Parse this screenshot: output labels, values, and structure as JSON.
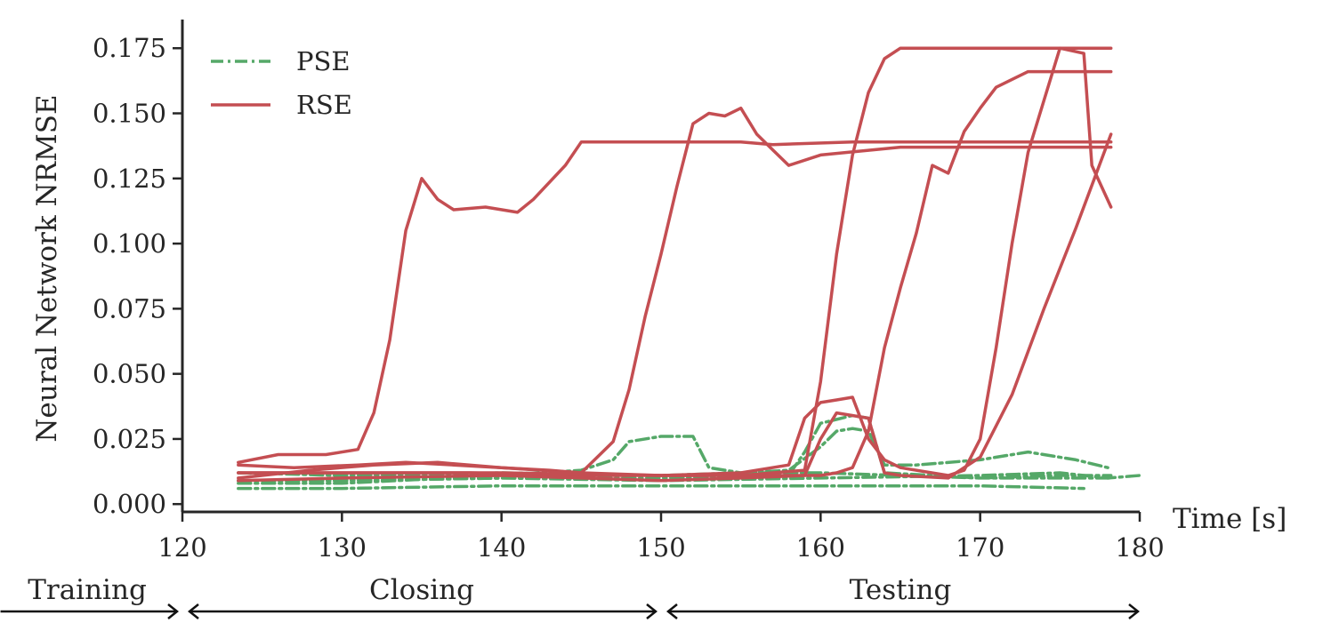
{
  "chart_data": {
    "type": "line",
    "title": "",
    "xlabel": "Time [s]",
    "ylabel": "Neural Network NRMSE",
    "xlim": [
      120,
      180
    ],
    "ylim": [
      -0.003,
      0.186
    ],
    "x_ticks": [
      120,
      130,
      140,
      150,
      160,
      170,
      180
    ],
    "x_tick_labels": [
      "120",
      "130",
      "140",
      "150",
      "160",
      "170",
      "180"
    ],
    "y_ticks": [
      0,
      0.025,
      0.05,
      0.075,
      0.1,
      0.125,
      0.15,
      0.175
    ],
    "y_tick_labels": [
      "0.000",
      "0.025",
      "0.050",
      "0.075",
      "0.100",
      "0.125",
      "0.150",
      "0.175"
    ],
    "grid": false,
    "legend": {
      "position": "top-left",
      "entries": [
        {
          "label": "PSE",
          "color": "#55a868",
          "style": "dash-dot"
        },
        {
          "label": "RSE",
          "color": "#c44e52",
          "style": "solid"
        }
      ]
    },
    "phases": [
      {
        "label": "Training",
        "from": 108.6,
        "to": 120
      },
      {
        "label": "Closing",
        "from": 120,
        "to": 150
      },
      {
        "label": "Testing",
        "from": 150,
        "to": 180
      }
    ],
    "series": [
      {
        "group": "RSE",
        "color": "#c44e52",
        "style": "solid",
        "x": [
          123.5,
          126,
          129,
          131,
          132,
          133,
          134,
          135,
          136,
          137,
          139,
          141,
          142,
          144,
          145,
          148,
          152,
          155,
          157,
          162,
          168,
          175,
          178.2
        ],
        "y": [
          0.016,
          0.019,
          0.019,
          0.021,
          0.035,
          0.063,
          0.105,
          0.125,
          0.117,
          0.113,
          0.114,
          0.112,
          0.117,
          0.13,
          0.139,
          0.139,
          0.139,
          0.139,
          0.138,
          0.139,
          0.139,
          0.139,
          0.139
        ]
      },
      {
        "group": "RSE",
        "color": "#c44e52",
        "style": "solid",
        "x": [
          123.5,
          127,
          131,
          134,
          137,
          140,
          143,
          145,
          147,
          148,
          149,
          150,
          151,
          152,
          153,
          154,
          155,
          156,
          157,
          158,
          160,
          165,
          170,
          175,
          178.2
        ],
        "y": [
          0.015,
          0.014,
          0.015,
          0.016,
          0.015,
          0.014,
          0.013,
          0.012,
          0.024,
          0.044,
          0.072,
          0.096,
          0.122,
          0.146,
          0.15,
          0.149,
          0.152,
          0.142,
          0.136,
          0.13,
          0.134,
          0.137,
          0.137,
          0.137,
          0.137
        ]
      },
      {
        "group": "RSE",
        "color": "#c44e52",
        "style": "solid",
        "x": [
          123.5,
          130,
          138,
          145,
          150,
          155,
          159,
          160,
          161,
          162,
          163,
          164,
          165,
          166,
          167,
          170,
          175,
          178.2
        ],
        "y": [
          0.012,
          0.012,
          0.012,
          0.011,
          0.011,
          0.011,
          0.013,
          0.047,
          0.096,
          0.134,
          0.158,
          0.171,
          0.175,
          0.175,
          0.175,
          0.175,
          0.175,
          0.175
        ]
      },
      {
        "group": "RSE",
        "color": "#c44e52",
        "style": "solid",
        "x": [
          123.5,
          130,
          140,
          150,
          155,
          160,
          161,
          162,
          163,
          164,
          165,
          166,
          167,
          168,
          169,
          170,
          171,
          173,
          175,
          178.2
        ],
        "y": [
          0.012,
          0.012,
          0.012,
          0.011,
          0.011,
          0.011,
          0.012,
          0.014,
          0.028,
          0.06,
          0.083,
          0.104,
          0.13,
          0.127,
          0.143,
          0.152,
          0.16,
          0.166,
          0.166,
          0.166
        ]
      },
      {
        "group": "RSE",
        "color": "#c44e52",
        "style": "solid",
        "x": [
          123.5,
          128,
          132,
          136,
          140,
          145,
          150,
          155,
          158,
          159,
          160,
          161,
          162,
          163,
          164,
          165,
          168,
          169,
          170,
          171,
          172,
          173,
          175,
          176.5,
          177,
          178.2
        ],
        "y": [
          0.01,
          0.013,
          0.015,
          0.016,
          0.014,
          0.012,
          0.011,
          0.012,
          0.015,
          0.033,
          0.039,
          0.04,
          0.041,
          0.025,
          0.017,
          0.014,
          0.011,
          0.013,
          0.025,
          0.06,
          0.1,
          0.135,
          0.175,
          0.173,
          0.13,
          0.114
        ]
      },
      {
        "group": "RSE",
        "color": "#c44e52",
        "style": "solid",
        "x": [
          123.5,
          130,
          140,
          150,
          155,
          159,
          160,
          161,
          163,
          164,
          165,
          168,
          170,
          172,
          174,
          176,
          178.2
        ],
        "y": [
          0.009,
          0.01,
          0.011,
          0.009,
          0.01,
          0.011,
          0.025,
          0.035,
          0.033,
          0.012,
          0.011,
          0.01,
          0.018,
          0.042,
          0.075,
          0.106,
          0.142
        ]
      },
      {
        "group": "PSE",
        "color": "#55a868",
        "style": "dash-dot",
        "x": [
          123.5,
          130,
          140,
          145,
          147,
          148,
          150,
          152,
          153,
          155,
          160,
          165,
          170,
          175,
          178.2
        ],
        "y": [
          0.008,
          0.008,
          0.011,
          0.013,
          0.017,
          0.024,
          0.026,
          0.026,
          0.014,
          0.012,
          0.012,
          0.011,
          0.01,
          0.01,
          0.01
        ]
      },
      {
        "group": "PSE",
        "color": "#55a868",
        "style": "dash-dot",
        "x": [
          123.5,
          130,
          140,
          150,
          155,
          158,
          160,
          161,
          162,
          163,
          164,
          166,
          170,
          173,
          176,
          178
        ],
        "y": [
          0.012,
          0.011,
          0.012,
          0.011,
          0.012,
          0.013,
          0.022,
          0.028,
          0.029,
          0.028,
          0.015,
          0.015,
          0.017,
          0.02,
          0.017,
          0.014
        ]
      },
      {
        "group": "PSE",
        "color": "#55a868",
        "style": "dash-dot",
        "x": [
          123.5,
          130,
          140,
          150,
          158,
          159,
          160,
          162,
          163,
          164,
          170,
          175,
          178.2
        ],
        "y": [
          0.009,
          0.009,
          0.01,
          0.01,
          0.011,
          0.02,
          0.031,
          0.034,
          0.033,
          0.012,
          0.01,
          0.011,
          0.011
        ]
      },
      {
        "group": "PSE",
        "color": "#55a868",
        "style": "dash-dot",
        "x": [
          123.5,
          130,
          140,
          150,
          160,
          170,
          176.5
        ],
        "y": [
          0.006,
          0.006,
          0.007,
          0.007,
          0.007,
          0.007,
          0.006
        ]
      },
      {
        "group": "PSE",
        "color": "#55a868",
        "style": "dash-dot",
        "x": [
          123.5,
          130,
          140,
          150,
          160,
          170,
          175,
          178,
          180
        ],
        "y": [
          0.009,
          0.009,
          0.01,
          0.009,
          0.01,
          0.011,
          0.012,
          0.01,
          0.011
        ]
      }
    ]
  }
}
